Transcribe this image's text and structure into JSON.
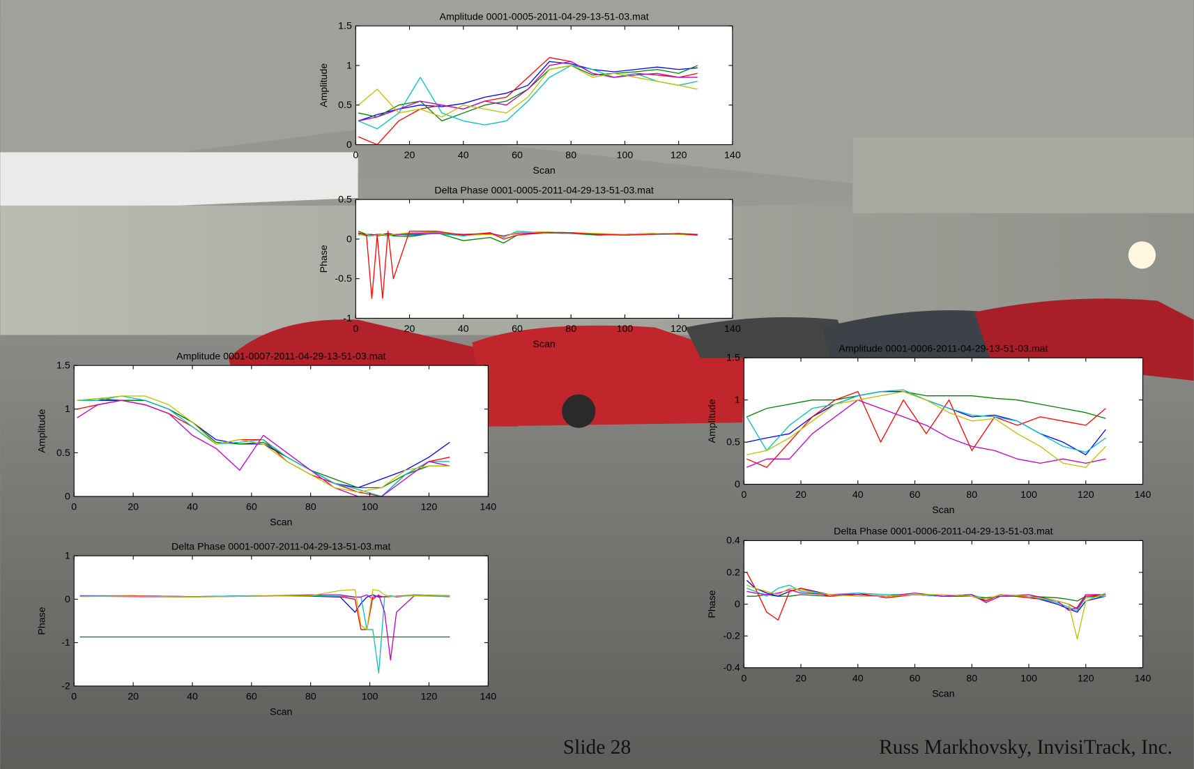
{
  "chart_data": [
    {
      "type": "line",
      "title": "Amplitude 0001-0005-2011-04-29-13-51-03.mat",
      "xlabel": "Scan",
      "ylabel": "Amplitude",
      "xlim": [
        0,
        140
      ],
      "xticks": [
        0,
        20,
        40,
        60,
        80,
        100,
        120,
        140
      ],
      "ylim": [
        0,
        1.5
      ],
      "yticks": [
        0,
        0.5,
        1,
        1.5
      ],
      "x": [
        1,
        8,
        16,
        24,
        32,
        40,
        48,
        56,
        64,
        72,
        80,
        88,
        96,
        104,
        112,
        120,
        127
      ],
      "series": [
        {
          "color": "#0000ff",
          "values": [
            0.3,
            0.38,
            0.45,
            0.5,
            0.48,
            0.52,
            0.6,
            0.65,
            0.75,
            1.05,
            1.02,
            0.95,
            0.92,
            0.95,
            0.98,
            0.95,
            0.97
          ]
        },
        {
          "color": "#ff0000",
          "values": [
            0.1,
            0.0,
            0.3,
            0.45,
            0.5,
            0.45,
            0.55,
            0.6,
            0.85,
            1.1,
            1.05,
            0.9,
            0.85,
            0.9,
            0.88,
            0.85,
            0.9
          ]
        },
        {
          "color": "#008000",
          "values": [
            0.4,
            0.35,
            0.5,
            0.55,
            0.3,
            0.4,
            0.5,
            0.55,
            0.7,
            0.95,
            1.0,
            0.88,
            0.9,
            0.92,
            0.95,
            0.9,
            1.0
          ]
        },
        {
          "color": "#00bfbf",
          "values": [
            0.3,
            0.2,
            0.4,
            0.85,
            0.4,
            0.3,
            0.25,
            0.3,
            0.55,
            0.85,
            1.0,
            0.95,
            0.85,
            0.9,
            0.8,
            0.75,
            0.8
          ]
        },
        {
          "color": "#bf00bf",
          "values": [
            0.3,
            0.35,
            0.45,
            0.55,
            0.5,
            0.45,
            0.55,
            0.5,
            0.7,
            1.0,
            1.05,
            0.9,
            0.85,
            0.88,
            0.9,
            0.85,
            0.85
          ]
        },
        {
          "color": "#bfbf00",
          "values": [
            0.5,
            0.7,
            0.4,
            0.45,
            0.35,
            0.5,
            0.45,
            0.4,
            0.6,
            0.95,
            1.0,
            0.85,
            0.9,
            0.85,
            0.8,
            0.75,
            0.7
          ]
        }
      ]
    },
    {
      "type": "line",
      "title": "Delta Phase 0001-0005-2011-04-29-13-51-03.mat",
      "xlabel": "Scan",
      "ylabel": "Phase",
      "xlim": [
        0,
        140
      ],
      "xticks": [
        0,
        20,
        40,
        60,
        80,
        100,
        120,
        140
      ],
      "ylim": [
        -1,
        0.5
      ],
      "yticks": [
        -1,
        -0.5,
        0,
        0.5
      ],
      "x": [
        1,
        4,
        6,
        8,
        10,
        12,
        14,
        20,
        30,
        40,
        50,
        55,
        60,
        70,
        80,
        90,
        100,
        110,
        120,
        127
      ],
      "series": [
        {
          "color": "#0000ff",
          "values": [
            0.08,
            0.05,
            0.05,
            0.06,
            0.06,
            0.07,
            0.06,
            0.05,
            0.07,
            0.05,
            0.06,
            0.04,
            0.08,
            0.09,
            0.08,
            0.06,
            0.06,
            0.07,
            0.06,
            0.05
          ]
        },
        {
          "color": "#008000",
          "values": [
            0.1,
            0.06,
            0.06,
            0.04,
            0.05,
            0.06,
            0.04,
            0.03,
            0.08,
            -0.02,
            0.02,
            -0.05,
            0.05,
            0.08,
            0.07,
            0.05,
            0.06,
            0.06,
            0.07,
            0.06
          ]
        },
        {
          "color": "#00bfbf",
          "values": [
            0.06,
            0.04,
            0.04,
            0.05,
            0.05,
            0.04,
            0.05,
            0.06,
            0.07,
            0.04,
            0.08,
            0.02,
            0.1,
            0.08,
            0.07,
            0.06,
            0.05,
            0.06,
            0.06,
            0.05
          ]
        },
        {
          "color": "#bf00bf",
          "values": [
            0.07,
            0.06,
            0.05,
            0.06,
            0.05,
            0.06,
            0.05,
            0.07,
            0.08,
            0.06,
            0.07,
            0.04,
            0.07,
            0.08,
            0.08,
            0.06,
            0.06,
            0.07,
            0.06,
            0.06
          ]
        },
        {
          "color": "#bfbf00",
          "values": [
            0.05,
            0.06,
            0.04,
            0.05,
            0.06,
            0.05,
            0.06,
            0.08,
            0.09,
            0.05,
            0.06,
            0.03,
            0.08,
            0.09,
            0.08,
            0.07,
            0.06,
            0.07,
            0.06,
            0.05
          ]
        },
        {
          "color": "#ff0000",
          "values": [
            0.08,
            0.05,
            -0.75,
            0.05,
            -0.75,
            0.1,
            -0.5,
            0.1,
            0.1,
            0.05,
            0.08,
            0.0,
            0.05,
            0.08,
            0.08,
            0.06,
            0.05,
            0.06,
            0.07,
            0.05
          ]
        }
      ]
    },
    {
      "type": "line",
      "title": "Amplitude 0001-0007-2011-04-29-13-51-03.mat",
      "xlabel": "Scan",
      "ylabel": "Amplitude",
      "xlim": [
        0,
        140
      ],
      "xticks": [
        0,
        20,
        40,
        60,
        80,
        100,
        120,
        140
      ],
      "ylim": [
        0,
        1.5
      ],
      "yticks": [
        0,
        0.5,
        1,
        1.5
      ],
      "x": [
        1,
        8,
        16,
        24,
        32,
        40,
        48,
        56,
        64,
        72,
        80,
        88,
        96,
        104,
        112,
        120,
        127
      ],
      "series": [
        {
          "color": "#0000ff",
          "values": [
            1.1,
            1.1,
            1.1,
            1.1,
            1.0,
            0.85,
            0.65,
            0.6,
            0.6,
            0.45,
            0.3,
            0.15,
            0.1,
            0.2,
            0.3,
            0.45,
            0.62
          ]
        },
        {
          "color": "#ff0000",
          "values": [
            1.0,
            1.05,
            1.1,
            1.05,
            0.95,
            0.8,
            0.6,
            0.65,
            0.65,
            0.4,
            0.25,
            0.15,
            0.05,
            0.0,
            0.25,
            0.4,
            0.45
          ]
        },
        {
          "color": "#008000",
          "values": [
            1.1,
            1.12,
            1.1,
            1.1,
            1.0,
            0.85,
            0.62,
            0.6,
            0.62,
            0.45,
            0.3,
            0.2,
            0.1,
            0.1,
            0.25,
            0.35,
            0.35
          ]
        },
        {
          "color": "#00bfbf",
          "values": [
            1.1,
            1.1,
            1.15,
            1.1,
            1.0,
            0.8,
            0.6,
            0.62,
            0.65,
            0.45,
            0.3,
            0.15,
            0.08,
            0.0,
            0.25,
            0.4,
            0.4
          ]
        },
        {
          "color": "#bf00bf",
          "values": [
            0.9,
            1.05,
            1.1,
            1.05,
            0.95,
            0.7,
            0.55,
            0.3,
            0.7,
            0.5,
            0.3,
            0.1,
            0.0,
            0.0,
            0.2,
            0.4,
            0.35
          ]
        },
        {
          "color": "#bfbf00",
          "values": [
            1.1,
            1.12,
            1.15,
            1.15,
            1.05,
            0.85,
            0.6,
            0.65,
            0.6,
            0.4,
            0.25,
            0.1,
            0.05,
            0.1,
            0.3,
            0.35,
            0.35
          ]
        }
      ]
    },
    {
      "type": "line",
      "title": "Delta Phase 0001-0007-2011-04-29-13-51-03.mat",
      "xlabel": "Scan",
      "ylabel": "Phase",
      "xlim": [
        0,
        140
      ],
      "xticks": [
        0,
        20,
        40,
        60,
        80,
        100,
        120,
        140
      ],
      "ylim": [
        -2,
        1
      ],
      "yticks": [
        -2,
        -1,
        0,
        1
      ],
      "x": [
        2,
        20,
        40,
        60,
        80,
        90,
        95,
        97,
        99,
        101,
        103,
        105,
        107,
        109,
        115,
        127
      ],
      "series": [
        {
          "color": "#008000",
          "values": [
            -0.87,
            -0.87,
            -0.87,
            -0.87,
            -0.87,
            -0.87,
            -0.87,
            -0.87,
            -0.87,
            -0.87,
            -0.87,
            -0.87,
            -0.87,
            -0.87,
            -0.87,
            -0.87
          ]
        },
        {
          "color": "#0000ff",
          "values": [
            0.08,
            0.08,
            0.06,
            0.08,
            0.07,
            0.05,
            -0.3,
            -0.1,
            0.05,
            0.1,
            0.05,
            0.06,
            0.08,
            0.05,
            0.1,
            0.08
          ]
        },
        {
          "color": "#ff0000",
          "values": [
            0.07,
            0.08,
            0.06,
            0.07,
            0.08,
            0.06,
            0.0,
            -0.7,
            -0.7,
            0.05,
            0.08,
            0.05,
            0.06,
            0.07,
            0.1,
            0.06
          ]
        },
        {
          "color": "#00bfbf",
          "values": [
            0.08,
            0.07,
            0.06,
            0.08,
            0.08,
            0.07,
            0.05,
            0.05,
            -0.7,
            -0.7,
            -1.7,
            0.05,
            0.08,
            0.06,
            0.1,
            0.08
          ]
        },
        {
          "color": "#bf00bf",
          "values": [
            0.07,
            0.06,
            0.05,
            0.07,
            0.1,
            0.1,
            0.05,
            0.05,
            0.1,
            0.0,
            0.1,
            -0.3,
            -1.4,
            -0.3,
            0.08,
            0.06
          ]
        },
        {
          "color": "#bfbf00",
          "values": [
            0.06,
            0.07,
            0.05,
            0.07,
            0.08,
            0.2,
            0.22,
            -0.6,
            -0.7,
            0.22,
            0.2,
            0.1,
            0.06,
            0.06,
            0.08,
            0.07
          ]
        }
      ]
    },
    {
      "type": "line",
      "title": "Amplitude 0001-0006-2011-04-29-13-51-03.mat",
      "xlabel": "Scan",
      "ylabel": "Amplitude",
      "xlim": [
        0,
        140
      ],
      "xticks": [
        0,
        20,
        40,
        60,
        80,
        100,
        120,
        140
      ],
      "ylim": [
        0,
        1.5
      ],
      "yticks": [
        0,
        0.5,
        1,
        1.5
      ],
      "x": [
        1,
        8,
        16,
        24,
        32,
        40,
        48,
        56,
        64,
        72,
        80,
        88,
        96,
        104,
        112,
        120,
        127
      ],
      "series": [
        {
          "color": "#008000",
          "values": [
            0.8,
            0.9,
            0.95,
            1.0,
            1.0,
            1.05,
            1.1,
            1.1,
            1.05,
            1.05,
            1.05,
            1.02,
            1.0,
            0.95,
            0.9,
            0.85,
            0.78
          ]
        },
        {
          "color": "#0000ff",
          "values": [
            0.5,
            0.55,
            0.6,
            0.8,
            0.95,
            1.05,
            1.1,
            1.1,
            1.0,
            0.9,
            0.8,
            0.82,
            0.75,
            0.6,
            0.5,
            0.35,
            0.65
          ]
        },
        {
          "color": "#ff0000",
          "values": [
            0.3,
            0.2,
            0.5,
            0.8,
            1.0,
            1.1,
            0.5,
            1.0,
            0.6,
            1.0,
            0.4,
            0.8,
            0.7,
            0.8,
            0.75,
            0.7,
            0.9
          ]
        },
        {
          "color": "#00bfbf",
          "values": [
            0.8,
            0.4,
            0.7,
            0.9,
            0.95,
            1.05,
            1.1,
            1.12,
            1.0,
            0.9,
            0.82,
            0.8,
            0.75,
            0.6,
            0.45,
            0.38,
            0.55
          ]
        },
        {
          "color": "#bf00bf",
          "values": [
            0.2,
            0.3,
            0.3,
            0.6,
            0.8,
            1.0,
            0.9,
            0.8,
            0.7,
            0.55,
            0.45,
            0.4,
            0.3,
            0.25,
            0.3,
            0.25,
            0.3
          ]
        },
        {
          "color": "#bfbf00",
          "values": [
            0.35,
            0.4,
            0.55,
            0.75,
            0.95,
            1.0,
            1.05,
            1.1,
            1.0,
            0.85,
            0.75,
            0.78,
            0.6,
            0.45,
            0.25,
            0.2,
            0.45
          ]
        }
      ]
    },
    {
      "type": "line",
      "title": "Delta Phase 0001-0006-2011-04-29-13-51-03.mat",
      "xlabel": "Scan",
      "ylabel": "Phase",
      "xlim": [
        0,
        140
      ],
      "xticks": [
        0,
        20,
        40,
        60,
        80,
        100,
        120,
        140
      ],
      "ylim": [
        -0.4,
        0.4
      ],
      "yticks": [
        -0.4,
        -0.2,
        0,
        0.2,
        0.4
      ],
      "x": [
        1,
        4,
        8,
        12,
        16,
        20,
        30,
        40,
        50,
        60,
        70,
        80,
        85,
        90,
        100,
        110,
        114,
        117,
        120,
        127
      ],
      "series": [
        {
          "color": "#008000",
          "values": [
            0.05,
            0.05,
            0.06,
            0.05,
            0.05,
            0.06,
            0.05,
            0.06,
            0.05,
            0.06,
            0.05,
            0.05,
            0.04,
            0.05,
            0.05,
            0.04,
            0.03,
            0.02,
            0.05,
            0.05
          ]
        },
        {
          "color": "#0000ff",
          "values": [
            0.15,
            0.1,
            0.07,
            0.05,
            0.08,
            0.1,
            0.06,
            0.06,
            0.05,
            0.06,
            0.05,
            0.06,
            0.02,
            0.06,
            0.05,
            0.0,
            -0.03,
            -0.05,
            0.02,
            0.05
          ]
        },
        {
          "color": "#ff0000",
          "values": [
            0.2,
            0.1,
            -0.05,
            -0.1,
            0.08,
            0.1,
            0.05,
            0.07,
            0.04,
            0.06,
            0.05,
            0.05,
            0.02,
            0.06,
            0.04,
            0.02,
            0.0,
            -0.03,
            0.05,
            0.06
          ]
        },
        {
          "color": "#00bfbf",
          "values": [
            0.1,
            0.08,
            0.05,
            0.1,
            0.12,
            0.08,
            0.06,
            0.07,
            0.06,
            0.06,
            0.05,
            0.06,
            0.03,
            0.06,
            0.05,
            0.01,
            -0.02,
            -0.04,
            0.04,
            0.05
          ]
        },
        {
          "color": "#bf00bf",
          "values": [
            0.08,
            0.07,
            0.06,
            0.07,
            0.09,
            0.07,
            0.06,
            0.06,
            0.05,
            0.07,
            0.05,
            0.06,
            0.01,
            0.05,
            0.06,
            0.02,
            -0.04,
            -0.02,
            0.06,
            0.06
          ]
        },
        {
          "color": "#bfbf00",
          "values": [
            0.12,
            0.1,
            0.08,
            0.06,
            0.1,
            0.09,
            0.06,
            0.05,
            0.05,
            0.06,
            0.06,
            0.05,
            0.03,
            0.06,
            0.05,
            0.02,
            0.0,
            -0.22,
            0.02,
            0.07
          ]
        }
      ]
    }
  ],
  "footer": {
    "slide": "Slide 28",
    "author": "Russ Markhovsky, InvisiTrack, Inc."
  }
}
